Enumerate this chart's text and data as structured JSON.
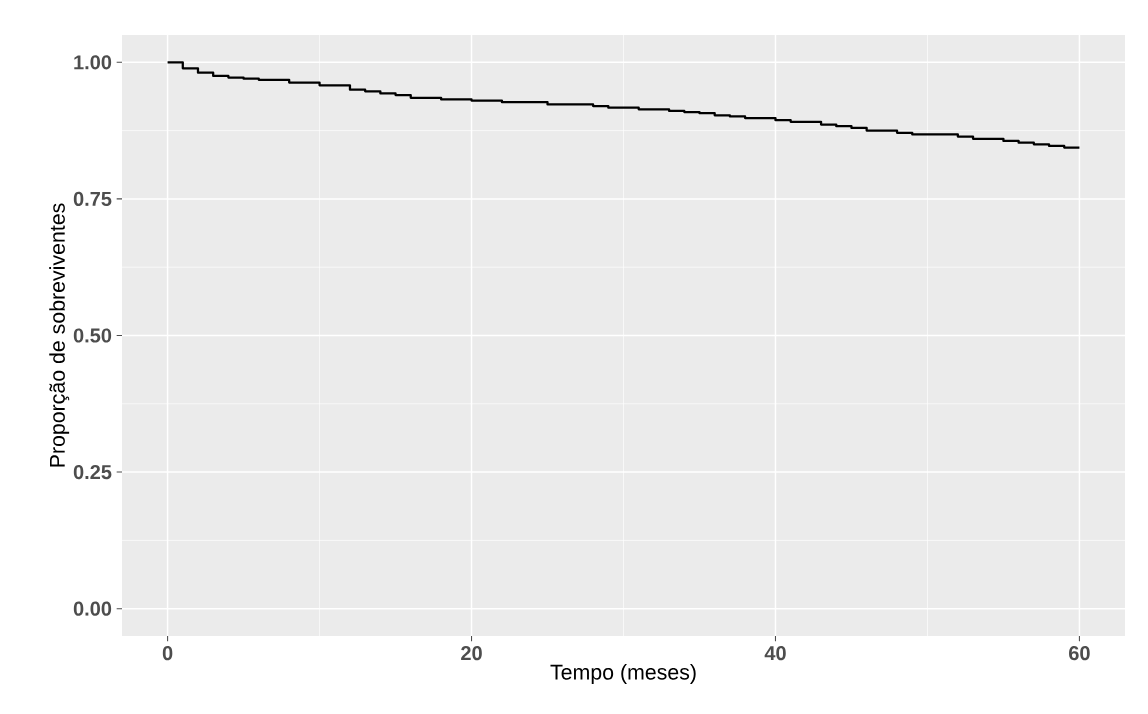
{
  "chart_data": {
    "type": "step",
    "xlabel": "Tempo (meses)",
    "ylabel": "Proporção de sobreviventes",
    "x": [
      0,
      1,
      2,
      3,
      4,
      5,
      6,
      8,
      10,
      12,
      13,
      14,
      15,
      16,
      18,
      20,
      22,
      25,
      28,
      29,
      31,
      33,
      34,
      35,
      36,
      37,
      38,
      40,
      41,
      43,
      44,
      45,
      46,
      48,
      49,
      52,
      53,
      55,
      56,
      57,
      58,
      59,
      60
    ],
    "values": [
      1.0,
      0.989,
      0.981,
      0.975,
      0.972,
      0.97,
      0.968,
      0.963,
      0.958,
      0.95,
      0.947,
      0.943,
      0.94,
      0.935,
      0.932,
      0.93,
      0.927,
      0.923,
      0.92,
      0.917,
      0.914,
      0.911,
      0.909,
      0.907,
      0.903,
      0.901,
      0.898,
      0.894,
      0.891,
      0.886,
      0.883,
      0.88,
      0.875,
      0.871,
      0.868,
      0.864,
      0.86,
      0.856,
      0.853,
      0.85,
      0.847,
      0.844,
      0.844
    ],
    "color": "#000000",
    "xlim": [
      -3,
      63
    ],
    "ylim": [
      -0.05,
      1.05
    ],
    "xticks": [
      0,
      20,
      40,
      60
    ],
    "yticks": [
      {
        "value": 0,
        "label": "0.00"
      },
      {
        "value": 0.25,
        "label": "0.25"
      },
      {
        "value": 0.5,
        "label": "0.50"
      },
      {
        "value": 0.75,
        "label": "0.75"
      },
      {
        "value": 1,
        "label": "1.00"
      }
    ],
    "grid": true,
    "line_style": "solid",
    "marker": "none"
  }
}
